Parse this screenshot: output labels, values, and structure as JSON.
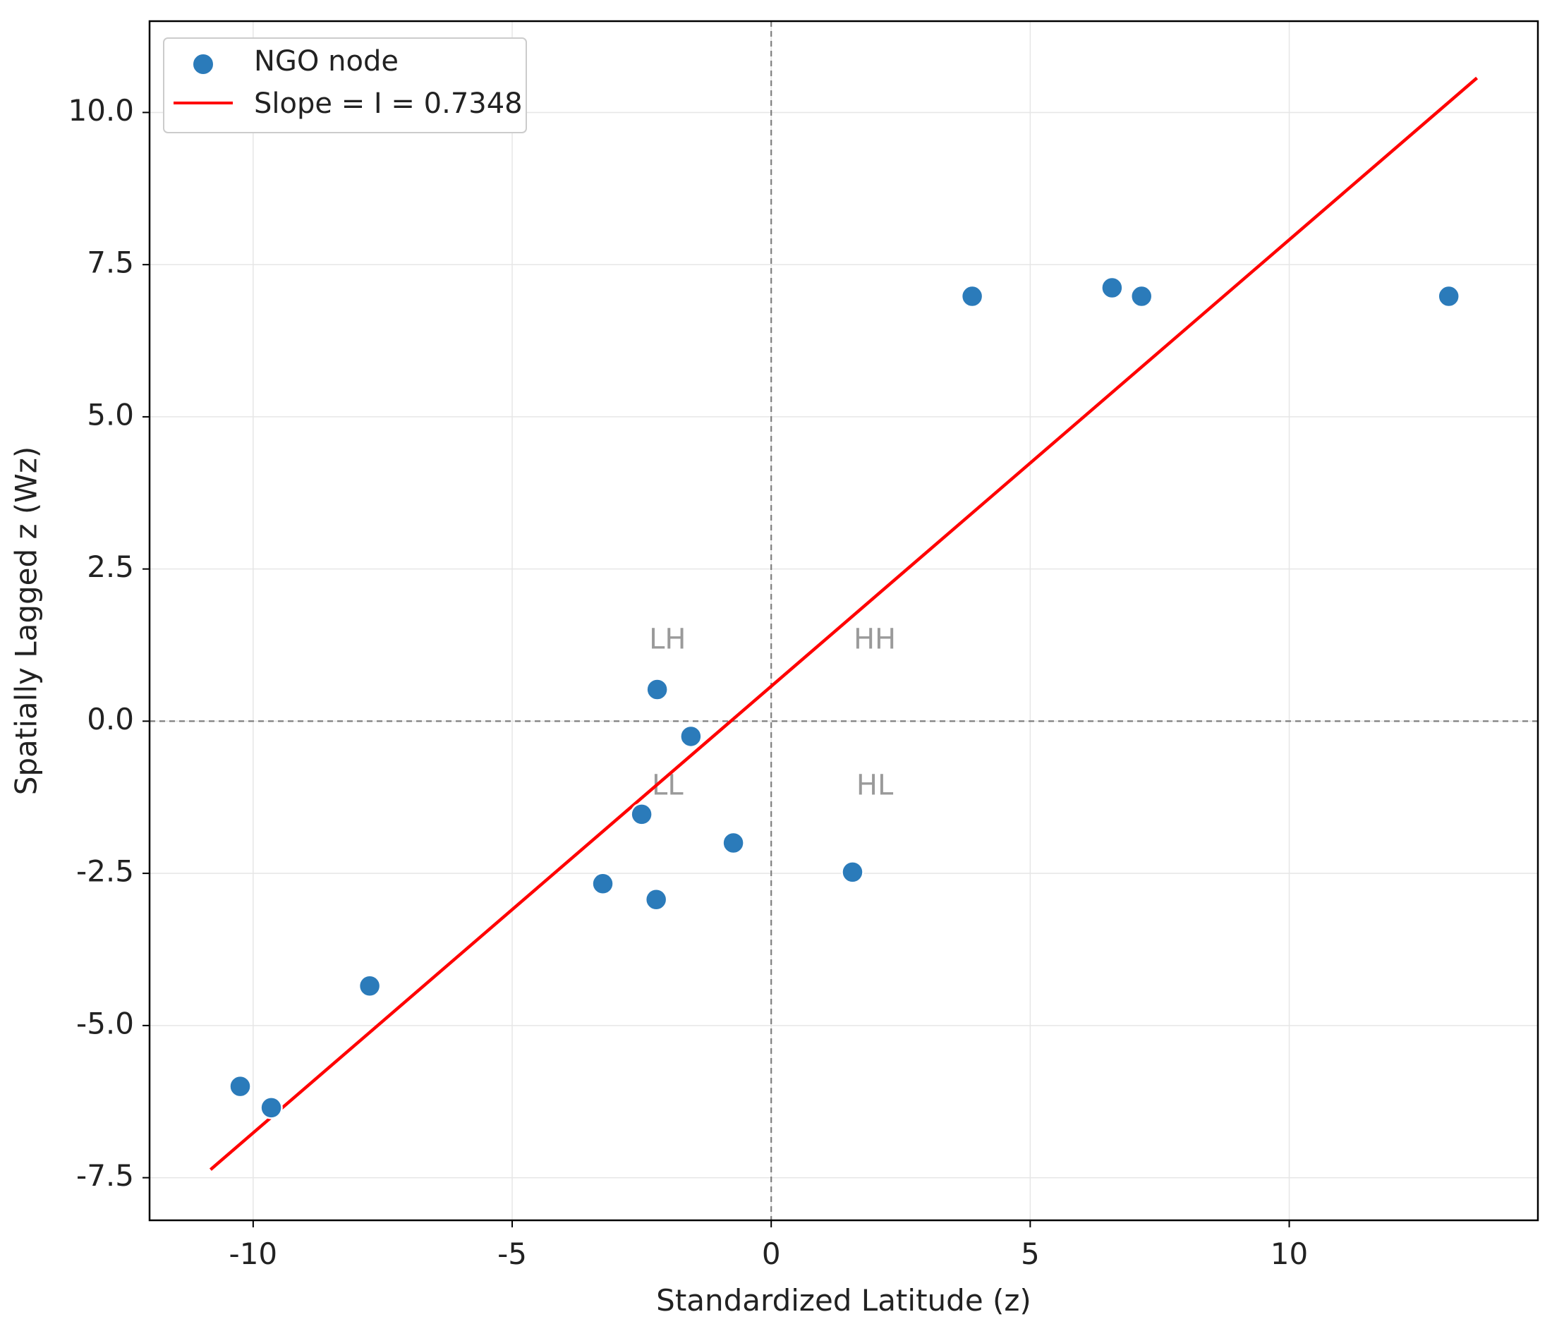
{
  "chart_data": {
    "type": "scatter",
    "title": "",
    "xlabel": "Standardized Latitude (z)",
    "ylabel": "Spatially Lagged z (Wz)",
    "xlim": [
      -12,
      14.8
    ],
    "ylim": [
      -8.2,
      11.5
    ],
    "xticks": [
      -10,
      -5,
      0,
      5,
      10
    ],
    "xtick_labels": [
      "-10",
      "-5",
      "0",
      "5",
      "10"
    ],
    "yticks": [
      -7.5,
      -5.0,
      -2.5,
      0.0,
      2.5,
      5.0,
      7.5,
      10.0
    ],
    "ytick_labels": [
      "-7.5",
      "-5.0",
      "-2.5",
      "0.0",
      "2.5",
      "5.0",
      "7.5",
      "10.0"
    ],
    "grid": true,
    "legend_position": "top-left",
    "series": [
      {
        "name": "NGO node",
        "kind": "scatter",
        "color": "#2b7bba",
        "points": [
          {
            "x": -10.25,
            "y": -6.0
          },
          {
            "x": -9.65,
            "y": -6.35
          },
          {
            "x": -7.75,
            "y": -4.35
          },
          {
            "x": -3.25,
            "y": -2.67
          },
          {
            "x": -2.5,
            "y": -1.53
          },
          {
            "x": -2.2,
            "y": 0.52
          },
          {
            "x": -2.22,
            "y": -2.93
          },
          {
            "x": -1.55,
            "y": -0.25
          },
          {
            "x": -0.73,
            "y": -2.0
          },
          {
            "x": 1.57,
            "y": -2.48
          },
          {
            "x": 3.88,
            "y": 6.98
          },
          {
            "x": 6.58,
            "y": 7.12
          },
          {
            "x": 7.15,
            "y": 6.98
          },
          {
            "x": 13.08,
            "y": 6.98
          }
        ]
      },
      {
        "name": "Slope = I = 0.7348",
        "kind": "line",
        "color": "#ff0000",
        "points": [
          {
            "x": -10.8,
            "y": -7.35
          },
          {
            "x": 13.6,
            "y": 10.55
          }
        ]
      }
    ],
    "reference_lines": {
      "x": 0,
      "y": 0,
      "color": "#7f7f7f"
    },
    "annotations": [
      "LH",
      "HH",
      "LL",
      "HL"
    ]
  }
}
